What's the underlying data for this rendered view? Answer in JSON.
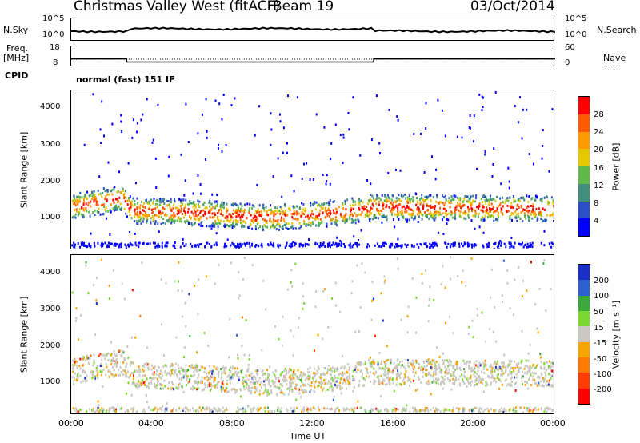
{
  "header": {
    "station": "Christmas Valley West (fitACF)",
    "beam": "Beam 19",
    "date": "03/Oct/2014"
  },
  "noise_panel": {
    "left_label": "N.Sky",
    "right_label": "N.Search",
    "left_ticks": [
      "10^5",
      "10^0"
    ],
    "right_ticks": [
      "10^5",
      "10^0"
    ]
  },
  "freq_panel": {
    "left_label_1": "Freq.",
    "left_label_2": "[MHz]",
    "right_label": "Nave",
    "left_ticks": [
      "18",
      "8"
    ],
    "right_ticks": [
      "60",
      "0"
    ]
  },
  "cpid": {
    "label": "CPID",
    "value": "normal (fast) 151 IF"
  },
  "power_panel": {
    "ylabel": "Slant Range [km]",
    "yticks": [
      "4000",
      "3000",
      "2000",
      "1000"
    ],
    "colorbar_label": "Power [dB]",
    "colorbar_ticks": [
      "28",
      "24",
      "20",
      "16",
      "12",
      "8",
      "4"
    ],
    "colors": [
      "#0000ff",
      "#2a4fc8",
      "#3f8f7c",
      "#5fb84a",
      "#e6c800",
      "#ff9a00",
      "#ff5a00",
      "#ff0000"
    ]
  },
  "velocity_panel": {
    "ylabel": "Slant Range [km]",
    "yticks": [
      "4000",
      "3000",
      "2000",
      "1000"
    ],
    "colorbar_label": "Velocity [m s⁻¹]",
    "colorbar_ticks": [
      "200",
      "100",
      "50",
      "15",
      "-15",
      "-50",
      "-100",
      "-200"
    ],
    "colors": [
      "#1a2fc8",
      "#2c5fd0",
      "#3aa83a",
      "#79d82e",
      "#c8c8c0",
      "#f7a400",
      "#ff7800",
      "#ff3c00",
      "#ff0000"
    ]
  },
  "xaxis": {
    "ticks": [
      "00:00",
      "04:00",
      "08:00",
      "12:00",
      "16:00",
      "20:00",
      "00:00"
    ],
    "label": "Time UT"
  },
  "chart_data": {
    "type": "heatmap",
    "title": "Christmas Valley West (fitACF) Beam 19 03/Oct/2014",
    "x_range_hours": [
      0,
      24
    ],
    "y_range_km": [
      180,
      4500
    ],
    "freq_mhz_segments": [
      {
        "x": [
          0,
          2.75
        ],
        "value": 12
      },
      {
        "x": [
          2.75,
          15.0
        ],
        "value": 10.5
      },
      {
        "x": [
          15.0,
          24
        ],
        "value": 12
      }
    ],
    "power_scatter_band_km": [
      {
        "hour": 0.0,
        "range": 1350
      },
      {
        "hour": 2.5,
        "range": 1600
      },
      {
        "hour": 3.0,
        "range": 1250
      },
      {
        "hour": 6.0,
        "range": 1200
      },
      {
        "hour": 10.0,
        "range": 1050
      },
      {
        "hour": 13.5,
        "range": 1200
      },
      {
        "hour": 15.0,
        "range": 1350
      },
      {
        "hour": 24.0,
        "range": 1300
      }
    ]
  }
}
